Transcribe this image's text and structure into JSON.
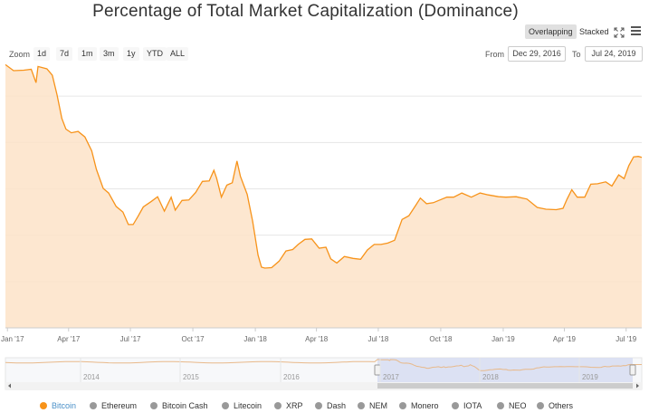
{
  "toolbar": {
    "overlapping_label": "Overlapping",
    "stacked_label": "Stacked",
    "zoom_label": "Zoom",
    "zoom_buttons": [
      "1d",
      "7d",
      "1m",
      "3m",
      "1y",
      "YTD",
      "ALL"
    ],
    "from_label": "From",
    "from_value": "Dec 29, 2016",
    "to_label": "To",
    "to_value": "Jul 24, 2019"
  },
  "colors": {
    "bitcoin": "#f7931a",
    "inactive": "#999999",
    "legend_active_text": "#4a90c8"
  },
  "chart_data": {
    "type": "area",
    "title": "Percentage of Total Market Capitalization (Dominance)",
    "xlabel": "",
    "ylabel": "",
    "x_ticks": [
      "Jan '17",
      "Apr '17",
      "Jul '17",
      "Oct '17",
      "Jan '18",
      "Apr '18",
      "Jul '18",
      "Oct '18",
      "Jan '19",
      "Apr '19",
      "Jul '19"
    ],
    "ylim": [
      30,
      90
    ],
    "grid": true,
    "legend_position": "bottom",
    "series": [
      {
        "name": "Bitcoin",
        "values": [
          [
            "2016-12-29",
            86.8
          ],
          [
            "2017-01-10",
            85.5
          ],
          [
            "2017-01-25",
            85.6
          ],
          [
            "2017-02-05",
            85.8
          ],
          [
            "2017-02-12",
            82.9
          ],
          [
            "2017-02-15",
            86.4
          ],
          [
            "2017-02-28",
            85.9
          ],
          [
            "2017-03-08",
            84.5
          ],
          [
            "2017-03-15",
            80.3
          ],
          [
            "2017-03-22",
            75.2
          ],
          [
            "2017-03-28",
            72.9
          ],
          [
            "2017-04-05",
            72.1
          ],
          [
            "2017-04-15",
            72.4
          ],
          [
            "2017-04-25",
            71.2
          ],
          [
            "2017-05-05",
            68.2
          ],
          [
            "2017-05-12",
            64.2
          ],
          [
            "2017-05-22",
            60.1
          ],
          [
            "2017-05-30",
            59.1
          ],
          [
            "2017-06-10",
            56.2
          ],
          [
            "2017-06-20",
            55.0
          ],
          [
            "2017-06-28",
            52.3
          ],
          [
            "2017-07-05",
            52.3
          ],
          [
            "2017-07-12",
            54.0
          ],
          [
            "2017-07-20",
            56.1
          ],
          [
            "2017-08-01",
            57.3
          ],
          [
            "2017-08-10",
            58.3
          ],
          [
            "2017-08-20",
            55.2
          ],
          [
            "2017-08-30",
            58.2
          ],
          [
            "2017-09-05",
            55.4
          ],
          [
            "2017-09-15",
            57.5
          ],
          [
            "2017-09-25",
            57.6
          ],
          [
            "2017-10-05",
            59.2
          ],
          [
            "2017-10-15",
            61.6
          ],
          [
            "2017-10-25",
            61.7
          ],
          [
            "2017-11-01",
            64.0
          ],
          [
            "2017-11-05",
            62.3
          ],
          [
            "2017-11-12",
            58.2
          ],
          [
            "2017-11-20",
            60.8
          ],
          [
            "2017-11-28",
            61.3
          ],
          [
            "2017-12-05",
            66.0
          ],
          [
            "2017-12-10",
            62.7
          ],
          [
            "2017-12-20",
            58.8
          ],
          [
            "2017-12-28",
            53.0
          ],
          [
            "2018-01-05",
            45.7
          ],
          [
            "2018-01-10",
            43.1
          ],
          [
            "2018-01-15",
            42.9
          ],
          [
            "2018-01-25",
            43.0
          ],
          [
            "2018-02-05",
            44.4
          ],
          [
            "2018-02-15",
            46.6
          ],
          [
            "2018-02-25",
            46.9
          ],
          [
            "2018-03-05",
            48.0
          ],
          [
            "2018-03-15",
            49.1
          ],
          [
            "2018-03-25",
            49.2
          ],
          [
            "2018-04-05",
            47.2
          ],
          [
            "2018-04-15",
            47.4
          ],
          [
            "2018-04-22",
            44.9
          ],
          [
            "2018-05-01",
            44.0
          ],
          [
            "2018-05-12",
            45.4
          ],
          [
            "2018-05-25",
            45.0
          ],
          [
            "2018-06-05",
            44.8
          ],
          [
            "2018-06-15",
            46.8
          ],
          [
            "2018-06-25",
            48.0
          ],
          [
            "2018-07-05",
            48.0
          ],
          [
            "2018-07-15",
            48.3
          ],
          [
            "2018-07-25",
            48.9
          ],
          [
            "2018-08-05",
            53.4
          ],
          [
            "2018-08-15",
            54.2
          ],
          [
            "2018-08-25",
            56.4
          ],
          [
            "2018-09-01",
            58.0
          ],
          [
            "2018-09-10",
            56.8
          ],
          [
            "2018-09-20",
            57.0
          ],
          [
            "2018-09-28",
            57.5
          ],
          [
            "2018-10-10",
            58.2
          ],
          [
            "2018-10-20",
            58.2
          ],
          [
            "2018-11-01",
            59.1
          ],
          [
            "2018-11-15",
            58.2
          ],
          [
            "2018-11-28",
            59.1
          ],
          [
            "2018-12-10",
            58.7
          ],
          [
            "2018-12-25",
            58.3
          ],
          [
            "2019-01-05",
            58.2
          ],
          [
            "2019-01-20",
            58.3
          ],
          [
            "2019-02-05",
            57.8
          ],
          [
            "2019-02-20",
            56.0
          ],
          [
            "2019-03-05",
            55.6
          ],
          [
            "2019-03-20",
            55.5
          ],
          [
            "2019-03-30",
            55.8
          ],
          [
            "2019-04-05",
            57.8
          ],
          [
            "2019-04-12",
            59.8
          ],
          [
            "2019-04-20",
            58.2
          ],
          [
            "2019-05-01",
            58.2
          ],
          [
            "2019-05-10",
            61.0
          ],
          [
            "2019-05-20",
            61.1
          ],
          [
            "2019-06-01",
            61.5
          ],
          [
            "2019-06-10",
            60.6
          ],
          [
            "2019-06-20",
            63.0
          ],
          [
            "2019-06-28",
            62.2
          ],
          [
            "2019-07-05",
            65.0
          ],
          [
            "2019-07-12",
            66.9
          ],
          [
            "2019-07-19",
            67.0
          ],
          [
            "2019-07-24",
            66.8
          ]
        ]
      }
    ],
    "navigator_labels": [
      "2014",
      "2015",
      "2016",
      "2017",
      "2018",
      "2019"
    ],
    "legend": [
      "Bitcoin",
      "Ethereum",
      "Bitcoin Cash",
      "Litecoin",
      "XRP",
      "Dash",
      "NEM",
      "Monero",
      "IOTA",
      "NEO",
      "Others"
    ],
    "active_series": "Bitcoin"
  }
}
